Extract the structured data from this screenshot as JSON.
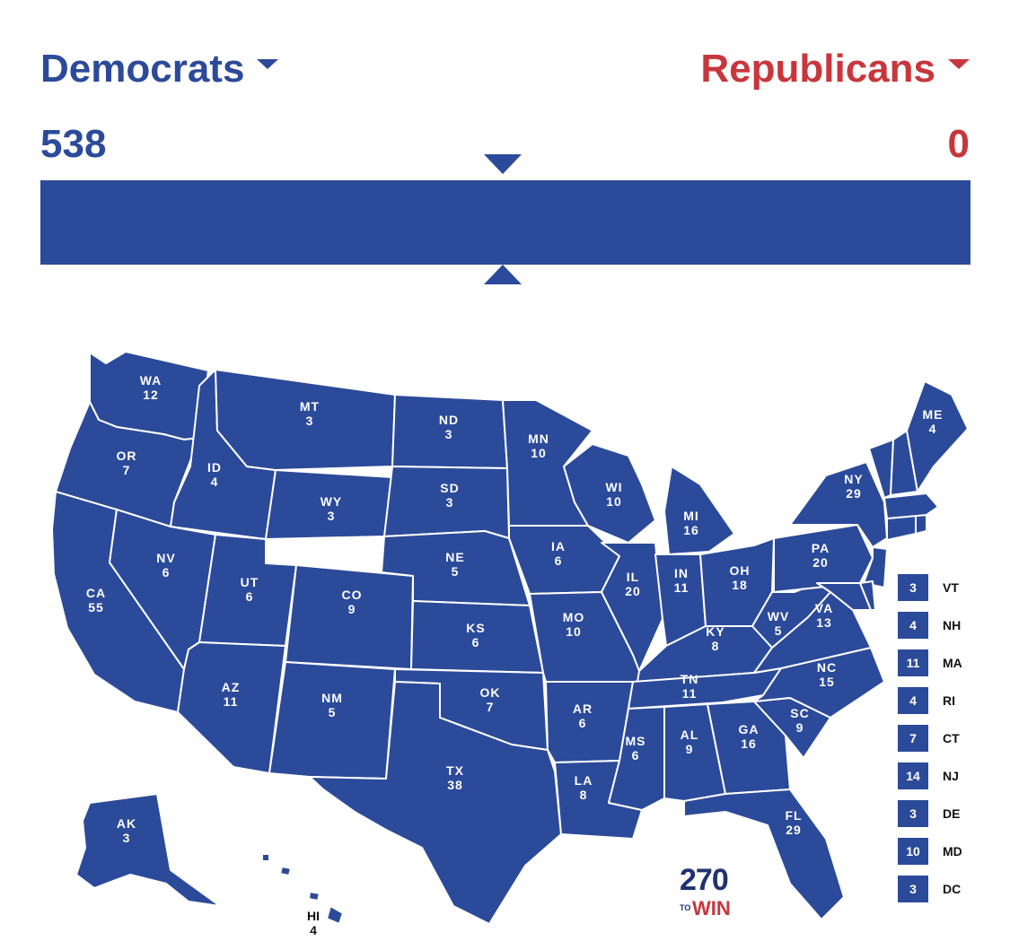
{
  "header": {
    "dem_label": "Democrats",
    "rep_label": "Republicans",
    "dem_total": "538",
    "rep_total": "0",
    "dem_share": 1.0,
    "rep_share": 0.0
  },
  "colors": {
    "democrat": "#2c4a9a",
    "republican": "#c8363c",
    "state_border": "#ffffff"
  },
  "states": {
    "WA": {
      "abbr": "WA",
      "ev": "12"
    },
    "OR": {
      "abbr": "OR",
      "ev": "7"
    },
    "CA": {
      "abbr": "CA",
      "ev": "55"
    },
    "ID": {
      "abbr": "ID",
      "ev": "4"
    },
    "NV": {
      "abbr": "NV",
      "ev": "6"
    },
    "MT": {
      "abbr": "MT",
      "ev": "3"
    },
    "WY": {
      "abbr": "WY",
      "ev": "3"
    },
    "UT": {
      "abbr": "UT",
      "ev": "6"
    },
    "AZ": {
      "abbr": "AZ",
      "ev": "11"
    },
    "CO": {
      "abbr": "CO",
      "ev": "9"
    },
    "NM": {
      "abbr": "NM",
      "ev": "5"
    },
    "ND": {
      "abbr": "ND",
      "ev": "3"
    },
    "SD": {
      "abbr": "SD",
      "ev": "3"
    },
    "NE": {
      "abbr": "NE",
      "ev": "5"
    },
    "KS": {
      "abbr": "KS",
      "ev": "6"
    },
    "OK": {
      "abbr": "OK",
      "ev": "7"
    },
    "TX": {
      "abbr": "TX",
      "ev": "38"
    },
    "MN": {
      "abbr": "MN",
      "ev": "10"
    },
    "IA": {
      "abbr": "IA",
      "ev": "6"
    },
    "MO": {
      "abbr": "MO",
      "ev": "10"
    },
    "AR": {
      "abbr": "AR",
      "ev": "6"
    },
    "LA": {
      "abbr": "LA",
      "ev": "8"
    },
    "WI": {
      "abbr": "WI",
      "ev": "10"
    },
    "IL": {
      "abbr": "IL",
      "ev": "20"
    },
    "MI": {
      "abbr": "MI",
      "ev": "16"
    },
    "IN": {
      "abbr": "IN",
      "ev": "11"
    },
    "OH": {
      "abbr": "OH",
      "ev": "18"
    },
    "KY": {
      "abbr": "KY",
      "ev": "8"
    },
    "TN": {
      "abbr": "TN",
      "ev": "11"
    },
    "MS": {
      "abbr": "MS",
      "ev": "6"
    },
    "AL": {
      "abbr": "AL",
      "ev": "9"
    },
    "GA": {
      "abbr": "GA",
      "ev": "16"
    },
    "FL": {
      "abbr": "FL",
      "ev": "29"
    },
    "SC": {
      "abbr": "SC",
      "ev": "9"
    },
    "NC": {
      "abbr": "NC",
      "ev": "15"
    },
    "VA": {
      "abbr": "VA",
      "ev": "13"
    },
    "WV": {
      "abbr": "WV",
      "ev": "5"
    },
    "PA": {
      "abbr": "PA",
      "ev": "20"
    },
    "NY": {
      "abbr": "NY",
      "ev": "29"
    },
    "ME": {
      "abbr": "ME",
      "ev": "4"
    },
    "AK": {
      "abbr": "AK",
      "ev": "3"
    },
    "HI": {
      "abbr": "HI",
      "ev": "4"
    }
  },
  "small_states": [
    {
      "abbr": "VT",
      "ev": "3"
    },
    {
      "abbr": "NH",
      "ev": "4"
    },
    {
      "abbr": "MA",
      "ev": "11"
    },
    {
      "abbr": "RI",
      "ev": "4"
    },
    {
      "abbr": "CT",
      "ev": "7"
    },
    {
      "abbr": "NJ",
      "ev": "14"
    },
    {
      "abbr": "DE",
      "ev": "3"
    },
    {
      "abbr": "MD",
      "ev": "10"
    },
    {
      "abbr": "DC",
      "ev": "3"
    }
  ],
  "logo": {
    "number": "270",
    "to": "TO",
    "win": "WIN"
  }
}
